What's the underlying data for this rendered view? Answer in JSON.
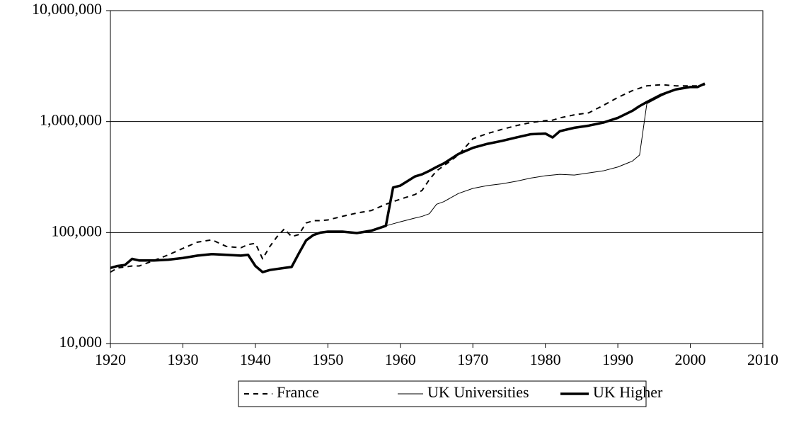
{
  "chart_data": {
    "type": "line",
    "x": [
      1920,
      1921,
      1922,
      1923,
      1924,
      1926,
      1928,
      1930,
      1932,
      1934,
      1936,
      1938,
      1939,
      1940,
      1941,
      1942,
      1943,
      1944,
      1945,
      1946,
      1947,
      1948,
      1949,
      1950,
      1952,
      1954,
      1956,
      1958,
      1959,
      1960,
      1962,
      1963,
      1964,
      1965,
      1966,
      1968,
      1970,
      1972,
      1974,
      1976,
      1978,
      1980,
      1981,
      1982,
      1984,
      1986,
      1988,
      1990,
      1992,
      1993,
      1994,
      1996,
      1998,
      2000,
      2001,
      2002
    ],
    "series": [
      {
        "name": "France",
        "color": "#000000",
        "style": "dashed",
        "values": [
          44000,
          48000,
          49000,
          50000,
          50000,
          56000,
          63000,
          72000,
          82000,
          86000,
          75000,
          73000,
          78000,
          80000,
          58000,
          75000,
          92000,
          108000,
          92000,
          96000,
          122000,
          128000,
          128000,
          130000,
          140000,
          150000,
          158000,
          180000,
          190000,
          200000,
          220000,
          240000,
          300000,
          360000,
          400000,
          500000,
          700000,
          780000,
          850000,
          920000,
          980000,
          1020000,
          1030000,
          1080000,
          1150000,
          1200000,
          1400000,
          1650000,
          1900000,
          2000000,
          2100000,
          2150000,
          2100000,
          2100000,
          2100000,
          2150000
        ]
      },
      {
        "name": "UK Universities",
        "color": "#000000",
        "style": "thin",
        "values": [
          48000,
          50000,
          51000,
          58000,
          56000,
          56000,
          57000,
          59000,
          62000,
          64000,
          63000,
          62000,
          63000,
          50000,
          44000,
          46000,
          47000,
          48000,
          49000,
          65000,
          85000,
          95000,
          100000,
          102000,
          102000,
          99000,
          104000,
          115000,
          120000,
          125000,
          135000,
          140000,
          148000,
          180000,
          190000,
          225000,
          250000,
          265000,
          275000,
          290000,
          310000,
          325000,
          330000,
          335000,
          330000,
          345000,
          360000,
          390000,
          440000,
          500000,
          1450000,
          1700000,
          1950000,
          2050000,
          2050000,
          2200000
        ]
      },
      {
        "name": "UK Higher",
        "color": "#000000",
        "style": "thick",
        "values": [
          48000,
          50000,
          51000,
          58000,
          56000,
          56000,
          57000,
          59000,
          62000,
          64000,
          63000,
          62000,
          63000,
          50000,
          44000,
          46000,
          47000,
          48000,
          49000,
          65000,
          85000,
          95000,
          100000,
          102000,
          102000,
          99000,
          104000,
          115000,
          255000,
          265000,
          320000,
          335000,
          360000,
          390000,
          420000,
          510000,
          580000,
          630000,
          670000,
          720000,
          770000,
          780000,
          720000,
          820000,
          880000,
          920000,
          980000,
          1080000,
          1250000,
          1380000,
          1500000,
          1750000,
          1950000,
          2050000,
          2050000,
          2200000
        ]
      }
    ],
    "xlim": [
      1920,
      2010
    ],
    "xticks": [
      1920,
      1930,
      1940,
      1950,
      1960,
      1970,
      1980,
      1990,
      2000,
      2010
    ],
    "ylim": [
      10000,
      10000000
    ],
    "log_y": true,
    "yticks": [
      {
        "value": 10000,
        "label": "10,000"
      },
      {
        "value": 100000,
        "label": "100,000"
      },
      {
        "value": 1000000,
        "label": "1,000,000"
      },
      {
        "value": 10000000,
        "label": "10,000,000"
      }
    ],
    "grid": true,
    "legend": "bottom"
  }
}
